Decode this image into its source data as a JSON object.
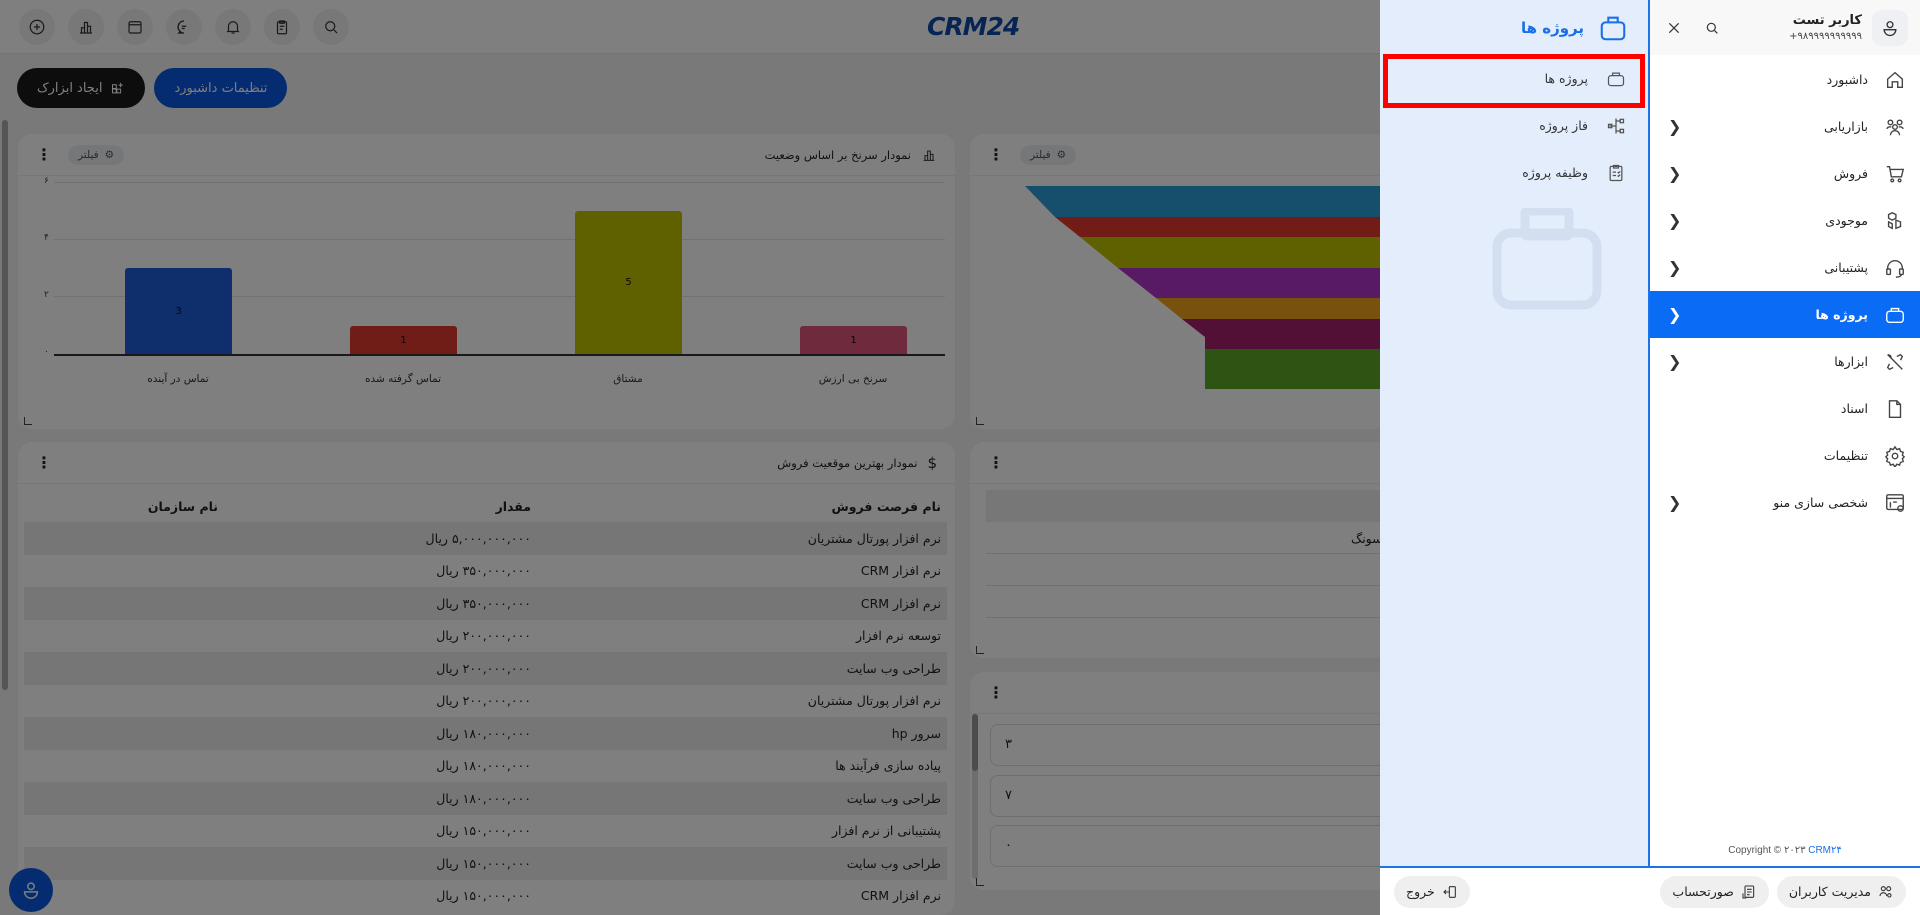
{
  "topbar": {
    "icons": [
      "plus-circle-icon",
      "bar-chart-icon",
      "calendar-icon",
      "chat-icon",
      "bell-icon",
      "clipboard-icon",
      "search-icon"
    ],
    "logo": "CRM24"
  },
  "actions": {
    "create_widget": "ایجاد ابزارک",
    "dashboard_settings": "تنظیمات داشبورد"
  },
  "cards": {
    "lead_chart": {
      "title": "نمودار سرنخ بر اساس وضعیت",
      "filter": "فیلتر"
    },
    "funnel": {
      "filter": "فیلتر"
    },
    "sales_table": {
      "title": "نمودار بهترین موقعیت فروش",
      "columns": [
        "نام فرصت فروش",
        "مقدار",
        "نام سازمان"
      ],
      "rows": [
        [
          "نرم افزار پورتال مشتریان",
          "۵,۰۰۰,۰۰۰,۰۰۰ ریال",
          ""
        ],
        [
          "نرم افزار CRM",
          "۳۵۰,۰۰۰,۰۰۰ ریال",
          ""
        ],
        [
          "نرم افزار CRM",
          "۳۵۰,۰۰۰,۰۰۰ ریال",
          ""
        ],
        [
          "توسعه نرم افزار",
          "۲۰۰,۰۰۰,۰۰۰ ریال",
          ""
        ],
        [
          "طراحی وب سایت",
          "۲۰۰,۰۰۰,۰۰۰ ریال",
          ""
        ],
        [
          "نرم افزار پورتال مشتریان",
          "۲۰۰,۰۰۰,۰۰۰ ریال",
          ""
        ],
        [
          "سرور hp",
          "۱۸۰,۰۰۰,۰۰۰ ریال",
          ""
        ],
        [
          "پیاده سازی فرآیند ها",
          "۱۸۰,۰۰۰,۰۰۰ ریال",
          ""
        ],
        [
          "طراحی وب سایت",
          "۱۸۰,۰۰۰,۰۰۰ ریال",
          ""
        ],
        [
          "پشتیبانی از نرم افزار",
          "۱۵۰,۰۰۰,۰۰۰ ریال",
          ""
        ],
        [
          "طراحی وب سایت",
          "۱۵۰,۰۰۰,۰۰۰ ریال",
          ""
        ],
        [
          "نرم افزار CRM",
          "۱۵۰,۰۰۰,۰۰۰ ریال",
          ""
        ]
      ]
    },
    "partial_table": {
      "visible_text": "مسونگ"
    },
    "list_card": {
      "items": [
        "۳",
        "۷",
        "۰"
      ]
    }
  },
  "chart_data": {
    "type": "bar",
    "title": "نمودار سرنخ بر اساس وضعیت",
    "categories": [
      "تماس در آینده",
      "تماس گرفته شده",
      "مشتاق",
      "سرنخ بی ارزش"
    ],
    "values": [
      3,
      1,
      5,
      1
    ],
    "colors": [
      "#1f5fd9",
      "#e0392e",
      "#bfc100",
      "#e0557a"
    ],
    "yticks": [
      "۰",
      "۲",
      "۴",
      "۶"
    ],
    "ylim": [
      0,
      6
    ],
    "xlabel": "",
    "ylabel": "",
    "grid": true
  },
  "sidebar": {
    "user": {
      "name": "کاربر تست",
      "phone": "۹۸۹۹۹۹۹۹۹۹۹۹+"
    },
    "menu": [
      {
        "label": "داشبورد",
        "icon": "home-icon",
        "chevron": false
      },
      {
        "label": "بازاریابی",
        "icon": "users-group-icon",
        "chevron": true
      },
      {
        "label": "فروش",
        "icon": "cart-icon",
        "chevron": true
      },
      {
        "label": "موجودی",
        "icon": "boxes-icon",
        "chevron": true
      },
      {
        "label": "پشتیبانی",
        "icon": "headset-icon",
        "chevron": true
      },
      {
        "label": "پروژه ها",
        "icon": "briefcase-icon",
        "chevron": true,
        "active": true
      },
      {
        "label": "ابزارها",
        "icon": "tools-icon",
        "chevron": true
      },
      {
        "label": "اسناد",
        "icon": "document-icon",
        "chevron": false
      },
      {
        "label": "تنظیمات",
        "icon": "gear-icon",
        "chevron": false
      },
      {
        "label": "شخصی سازی منو",
        "icon": "layout-settings-icon",
        "chevron": true
      }
    ],
    "copyright_prefix": "Copyright © ۲۰۲۳",
    "copyright_brand": "CRM۲۴",
    "submenu": {
      "title": "پروژه ها",
      "items": [
        {
          "label": "پروژه ها",
          "icon": "briefcase-icon",
          "highlighted": true
        },
        {
          "label": "فاز پروژه",
          "icon": "phase-icon"
        },
        {
          "label": "وظیفه پروژه",
          "icon": "task-clipboard-icon"
        }
      ]
    },
    "bottom": {
      "user_management": "مدیریت کاربران",
      "invoice": "صورتحساب",
      "logout": "خروج"
    }
  },
  "colors": {
    "accent": "#0a6cf5",
    "submenu_bg": "#e3edfc",
    "highlight": "#ff0000"
  }
}
